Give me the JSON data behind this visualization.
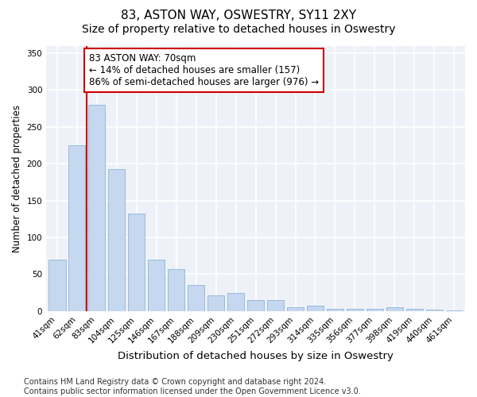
{
  "title": "83, ASTON WAY, OSWESTRY, SY11 2XY",
  "subtitle": "Size of property relative to detached houses in Oswestry",
  "xlabel": "Distribution of detached houses by size in Oswestry",
  "ylabel": "Number of detached properties",
  "categories": [
    "41sqm",
    "62sqm",
    "83sqm",
    "104sqm",
    "125sqm",
    "146sqm",
    "167sqm",
    "188sqm",
    "209sqm",
    "230sqm",
    "251sqm",
    "272sqm",
    "293sqm",
    "314sqm",
    "335sqm",
    "356sqm",
    "377sqm",
    "398sqm",
    "419sqm",
    "440sqm",
    "461sqm"
  ],
  "values": [
    70,
    225,
    280,
    193,
    132,
    70,
    57,
    35,
    22,
    25,
    15,
    15,
    5,
    7,
    3,
    3,
    3,
    5,
    3,
    2,
    1
  ],
  "bar_color": "#c5d8ef",
  "bar_edge_color": "#8db4d8",
  "highlight_line_color": "#cc0000",
  "annotation_line1": "83 ASTON WAY: 70sqm",
  "annotation_line2": "← 14% of detached houses are smaller (157)",
  "annotation_line3": "86% of semi-detached houses are larger (976) →",
  "annotation_box_color": "#ffffff",
  "annotation_box_edge_color": "#cc0000",
  "ylim": [
    0,
    360
  ],
  "yticks": [
    0,
    50,
    100,
    150,
    200,
    250,
    300,
    350
  ],
  "footer_text": "Contains HM Land Registry data © Crown copyright and database right 2024.\nContains public sector information licensed under the Open Government Licence v3.0.",
  "background_color": "#ffffff",
  "plot_background_color": "#eef2f8",
  "grid_color": "#ffffff",
  "title_fontsize": 11,
  "subtitle_fontsize": 10,
  "xlabel_fontsize": 9.5,
  "ylabel_fontsize": 8.5,
  "tick_fontsize": 7.5,
  "annotation_fontsize": 8.5,
  "footer_fontsize": 7
}
